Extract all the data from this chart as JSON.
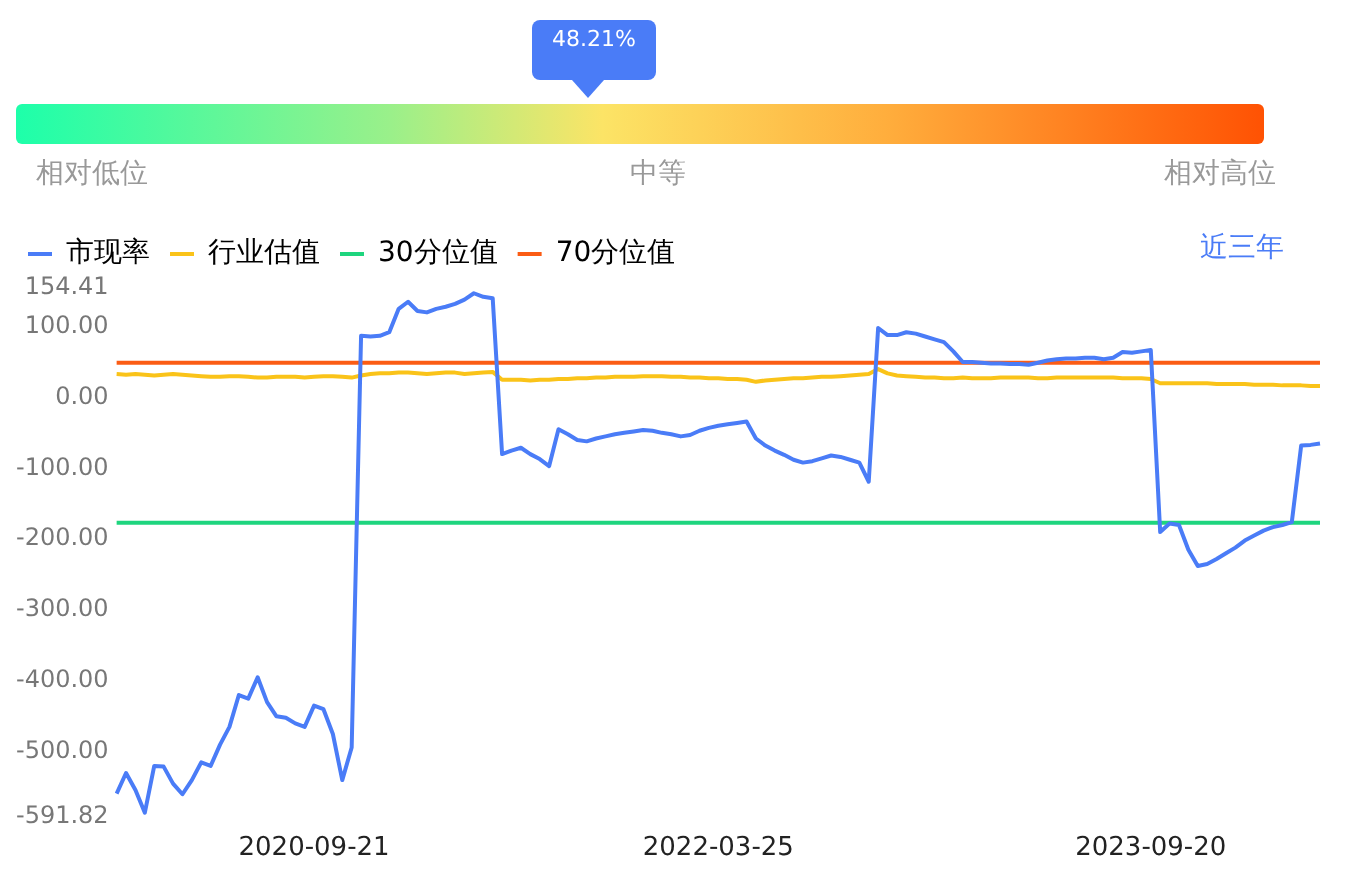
{
  "chart_data": {
    "type": "line",
    "categories": [
      null,
      null,
      null,
      null,
      null,
      null,
      null,
      null,
      null,
      null,
      null,
      null,
      null,
      null,
      null,
      null,
      null,
      null,
      null,
      null,
      null,
      "2020-09-21",
      null,
      null,
      null,
      null,
      null,
      null,
      null,
      null,
      null,
      null,
      null,
      null,
      null,
      null,
      null,
      null,
      null,
      null,
      null,
      null,
      null,
      null,
      null,
      null,
      null,
      null,
      null,
      null,
      null,
      null,
      null,
      null,
      null,
      null,
      null,
      null,
      null,
      null,
      null,
      null,
      null,
      null,
      "2022-03-25",
      null,
      null,
      null,
      null,
      null,
      null,
      null,
      null,
      null,
      null,
      null,
      null,
      null,
      null,
      null,
      null,
      null,
      null,
      null,
      null,
      null,
      null,
      null,
      null,
      null,
      null,
      null,
      null,
      null,
      null,
      null,
      null,
      null,
      null,
      null,
      null,
      null,
      null,
      null,
      null,
      null,
      null,
      null,
      null,
      null,
      "2023-09-20",
      null,
      null,
      null,
      null,
      null,
      null,
      null,
      null,
      null,
      null,
      null,
      null,
      null,
      null,
      null,
      null,
      null,
      null
    ],
    "series": [
      {
        "name": "市现率",
        "color": "#4a7cf7",
        "values": [
          -559,
          -530,
          -554,
          -586,
          -520,
          -521,
          -545,
          -560,
          -540,
          -515,
          -520,
          -490,
          -465,
          -420,
          -425,
          -395,
          -430,
          -450,
          -452,
          -460,
          -465,
          -435,
          -440,
          -475,
          -540,
          -494,
          87,
          86,
          87,
          92,
          125,
          135,
          122,
          120,
          125,
          128,
          132,
          138,
          147,
          142,
          140,
          -80,
          -75,
          -71,
          -80,
          -87,
          -97,
          -45,
          -52,
          -60,
          -62,
          -58,
          -55,
          -52,
          -50,
          -48,
          -46,
          -47,
          -50,
          -52,
          -55,
          -53,
          -47,
          -43,
          -40,
          -38,
          -36,
          -34,
          -58,
          -68,
          -75,
          -81,
          -88,
          -92,
          -90,
          -86,
          -82,
          -84,
          -88,
          -92,
          -119,
          98,
          88,
          88,
          92,
          90,
          86,
          82,
          78,
          65,
          50,
          50,
          49,
          48,
          48,
          47,
          47,
          46,
          49,
          52,
          54,
          55,
          55,
          56,
          56,
          54,
          56,
          64,
          63,
          65,
          67,
          -190,
          -178,
          -180,
          -215,
          -238,
          -235,
          -228,
          -220,
          -212,
          -202,
          -195,
          -188,
          -183,
          -180,
          -176,
          -68,
          -67,
          -65
        ]
      },
      {
        "name": "行业估值",
        "color": "#fac319",
        "values": [
          33,
          32,
          33,
          32,
          31,
          32,
          33,
          32,
          31,
          30,
          29,
          29,
          30,
          30,
          29,
          28,
          28,
          29,
          29,
          29,
          28,
          29,
          30,
          30,
          29,
          28,
          31,
          33,
          34,
          34,
          35,
          35,
          34,
          33,
          34,
          35,
          35,
          33,
          34,
          35,
          36,
          25,
          25,
          25,
          24,
          25,
          25,
          26,
          26,
          27,
          27,
          28,
          28,
          29,
          29,
          29,
          30,
          30,
          30,
          29,
          29,
          28,
          28,
          27,
          27,
          26,
          26,
          25,
          22,
          24,
          25,
          26,
          27,
          27,
          28,
          29,
          29,
          30,
          31,
          32,
          33,
          40,
          34,
          31,
          30,
          29,
          28,
          28,
          27,
          27,
          28,
          27,
          27,
          27,
          28,
          28,
          28,
          28,
          27,
          27,
          28,
          28,
          28,
          28,
          28,
          28,
          28,
          27,
          27,
          27,
          26,
          20,
          20,
          20,
          20,
          20,
          20,
          19,
          19,
          19,
          19,
          18,
          18,
          18,
          17,
          17,
          17,
          16,
          16
        ]
      },
      {
        "name": "30分位值",
        "color": "#1ed57e",
        "values": [
          -177,
          -177,
          -177,
          -177,
          -177,
          -177,
          -177,
          -177,
          -177,
          -177,
          -177,
          -177,
          -177,
          -177,
          -177,
          -177,
          -177,
          -177,
          -177,
          -177,
          -177,
          -177,
          -177,
          -177,
          -177,
          -177,
          -177,
          -177,
          -177,
          -177,
          -177,
          -177,
          -177,
          -177,
          -177,
          -177,
          -177,
          -177,
          -177,
          -177,
          -177,
          -177,
          -177,
          -177,
          -177,
          -177,
          -177,
          -177,
          -177,
          -177,
          -177,
          -177,
          -177,
          -177,
          -177,
          -177,
          -177,
          -177,
          -177,
          -177,
          -177,
          -177,
          -177,
          -177,
          -177,
          -177,
          -177,
          -177,
          -177,
          -177,
          -177,
          -177,
          -177,
          -177,
          -177,
          -177,
          -177,
          -177,
          -177,
          -177,
          -177,
          -177,
          -177,
          -177,
          -177,
          -177,
          -177,
          -177,
          -177,
          -177,
          -177,
          -177,
          -177,
          -177,
          -177,
          -177,
          -177,
          -177,
          -177,
          -177,
          -177,
          -177,
          -177,
          -177,
          -177,
          -177,
          -177,
          -177,
          -177,
          -177,
          -177,
          -177,
          -177,
          -177,
          -177,
          -177,
          -177,
          -177,
          -177,
          -177,
          -177,
          -177,
          -177,
          -177,
          -177,
          -177,
          -177,
          -177,
          -177
        ]
      },
      {
        "name": "70分位值",
        "color": "#fb5c14",
        "values": [
          49,
          49,
          49,
          49,
          49,
          49,
          49,
          49,
          49,
          49,
          49,
          49,
          49,
          49,
          49,
          49,
          49,
          49,
          49,
          49,
          49,
          49,
          49,
          49,
          49,
          49,
          49,
          49,
          49,
          49,
          49,
          49,
          49,
          49,
          49,
          49,
          49,
          49,
          49,
          49,
          49,
          49,
          49,
          49,
          49,
          49,
          49,
          49,
          49,
          49,
          49,
          49,
          49,
          49,
          49,
          49,
          49,
          49,
          49,
          49,
          49,
          49,
          49,
          49,
          49,
          49,
          49,
          49,
          49,
          49,
          49,
          49,
          49,
          49,
          49,
          49,
          49,
          49,
          49,
          49,
          49,
          49,
          49,
          49,
          49,
          49,
          49,
          49,
          49,
          49,
          49,
          49,
          49,
          49,
          49,
          49,
          49,
          49,
          49,
          49,
          49,
          49,
          49,
          49,
          49,
          49,
          49,
          49,
          49,
          49,
          49,
          49,
          49,
          49,
          49,
          49,
          49,
          49,
          49,
          49,
          49,
          49,
          49,
          49,
          49,
          49,
          49,
          49,
          49
        ]
      }
    ],
    "ylim": [
      -591.82,
      154.41
    ],
    "yticks": [
      {
        "value": 154.41,
        "label": "154.41"
      },
      {
        "value": 100,
        "label": "100.00"
      },
      {
        "value": 0,
        "label": "0.00"
      },
      {
        "value": -100,
        "label": "-100.00"
      },
      {
        "value": -200,
        "label": "-200.00"
      },
      {
        "value": -300,
        "label": "-300.00"
      },
      {
        "value": -400,
        "label": "-400.00"
      },
      {
        "value": -500,
        "label": "-500.00"
      },
      {
        "value": -591.82,
        "label": "-591.82"
      }
    ],
    "grid": false,
    "legend": "top left",
    "marker": "none",
    "line_style": "solid",
    "annotations": [
      "48.21%",
      "相对低位",
      "中等",
      "相对高位",
      "近三年"
    ]
  }
}
